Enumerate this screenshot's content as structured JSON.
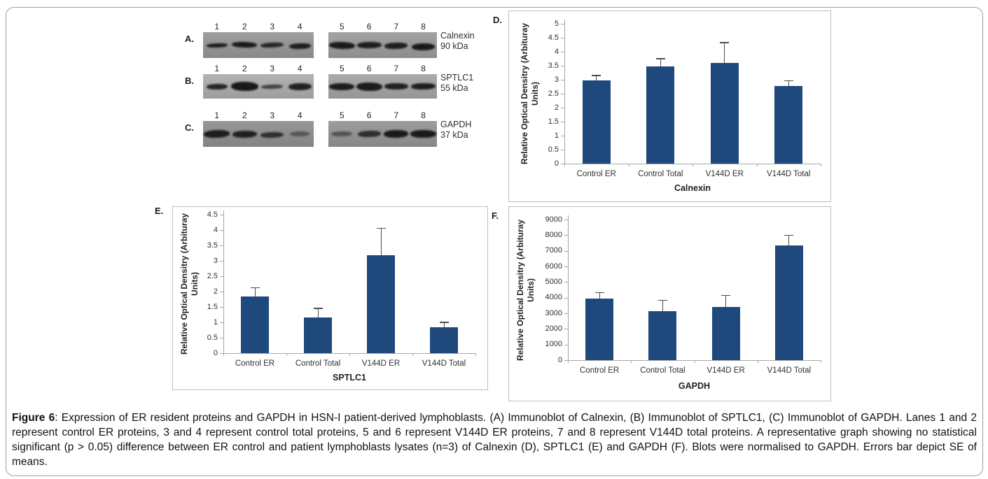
{
  "caption": {
    "prefix": "Figure 6",
    "text": ": Expression of ER resident proteins and GAPDH in HSN-I patient-derived lymphoblasts. (A) Immunoblot of Calnexin, (B) Immunoblot of SPTLC1, (C) Immunoblot of GAPDH. Lanes 1 and 2 represent control ER proteins, 3 and 4 represent control total proteins, 5 and 6 represent V144D ER proteins, 7 and 8 represent V144D total proteins. A representative graph showing no statistical significant (p > 0.05) difference between ER control and patient lymphoblasts lysates (n=3) of Calnexin (D), SPTLC1 (E) and GAPDH (F). Blots were normalised to GAPDH. Errors bar depict SE of means."
  },
  "colors": {
    "bar": "#1F497D",
    "axis": "#A6A6A6",
    "error_bar": "#4D4D4D",
    "tick_text": "#303030",
    "panel_border": "#BFBFBF",
    "frame_border": "#9E9E9E"
  },
  "blots": {
    "panels": [
      {
        "letter": "A.",
        "target": "Calnexin",
        "size": "90 kDa",
        "strips": [
          {
            "bg": "#949494",
            "lanes": [
              "1",
              "2",
              "3",
              "4"
            ],
            "bands": [
              [
                30,
                6,
                0.93,
                0,
                -2
              ],
              [
                36,
                8,
                0.95,
                -1,
                2
              ],
              [
                33,
                7,
                0.85,
                0,
                -3
              ],
              [
                31,
                8,
                0.92,
                1,
                -2
              ]
            ]
          },
          {
            "bg": "#999999",
            "lanes": [
              "5",
              "6",
              "7",
              "8"
            ],
            "bands": [
              [
                37,
                10,
                0.95,
                0,
                2
              ],
              [
                35,
                9,
                0.92,
                0,
                -1
              ],
              [
                33,
                9,
                0.92,
                1,
                -2
              ],
              [
                33,
                10,
                0.95,
                2,
                -1
              ]
            ]
          }
        ]
      },
      {
        "letter": "B.",
        "target": "SPTLC1",
        "size": "55 kDa",
        "strips": [
          {
            "bg": "#ababab",
            "lanes": [
              "1",
              "2",
              "3",
              "4"
            ],
            "bands": [
              [
                30,
                8,
                0.88,
                0,
                -1
              ],
              [
                39,
                13,
                0.96,
                0,
                1
              ],
              [
                31,
                6,
                0.68,
                0,
                -2
              ],
              [
                33,
                10,
                0.9,
                0,
                -1
              ]
            ]
          },
          {
            "bg": "#a2a2a2",
            "lanes": [
              "5",
              "6",
              "7",
              "8"
            ],
            "bands": [
              [
                36,
                10,
                0.94,
                0,
                0
              ],
              [
                37,
                12,
                0.95,
                0,
                1
              ],
              [
                34,
                9,
                0.9,
                0,
                0
              ],
              [
                35,
                9,
                0.92,
                0,
                -1
              ]
            ]
          }
        ]
      },
      {
        "letter": "C.",
        "target": "GAPDH",
        "size": "37 kDa",
        "strips": [
          {
            "bg": "#8d8d8d",
            "lanes": [
              "1",
              "2",
              "3",
              "4"
            ],
            "bands": [
              [
                37,
                11,
                0.92,
                0,
                -2
              ],
              [
                35,
                10,
                0.9,
                0,
                -1
              ],
              [
                33,
                8,
                0.78,
                1,
                -2
              ],
              [
                28,
                7,
                0.45,
                0,
                -1
              ]
            ]
          },
          {
            "bg": "#929292",
            "lanes": [
              "5",
              "6",
              "7",
              "8"
            ],
            "bands": [
              [
                30,
                7,
                0.5,
                0,
                -1
              ],
              [
                33,
                9,
                0.8,
                0,
                -2
              ],
              [
                35,
                11,
                0.95,
                0,
                -1
              ],
              [
                37,
                11,
                0.95,
                0,
                0
              ]
            ]
          }
        ]
      }
    ]
  },
  "chart_data": [
    {
      "id": "D",
      "panel_letter": "D.",
      "type": "bar",
      "title": "",
      "xlabel": "Calnexin",
      "ylabel": "Relative Optical Densitry (Arbituray Units)",
      "ylabel_lines": [
        "Relative Optical Densitry (Arbituray",
        "Units)"
      ],
      "categories": [
        "Control ER",
        "Control Total",
        "V144D ER",
        "V144D Total"
      ],
      "values": [
        2.97,
        3.48,
        3.6,
        2.78
      ],
      "errors_se": [
        0.18,
        0.27,
        0.72,
        0.18
      ],
      "ylim": [
        0,
        5
      ],
      "yticks": [
        "0",
        "0.5",
        "1",
        "1.5",
        "2",
        "2.5",
        "3",
        "3.5",
        "4",
        "4.5",
        "5"
      ],
      "grid": false,
      "legend": "none"
    },
    {
      "id": "E",
      "panel_letter": "E.",
      "type": "bar",
      "title": "",
      "xlabel": "SPTLC1",
      "ylabel": "Relative Optical Densitry (Arbituray Units)",
      "ylabel_lines": [
        "Relative Optical Densitry (Arbituray",
        "Units)"
      ],
      "categories": [
        "Control ER",
        "Control Total",
        "V144D ER",
        "V144D Total"
      ],
      "values": [
        1.85,
        1.17,
        3.18,
        0.85
      ],
      "errors_se": [
        0.27,
        0.28,
        0.87,
        0.15
      ],
      "ylim": [
        0,
        4.5
      ],
      "yticks": [
        "0",
        "0.5",
        "1",
        "1.5",
        "2",
        "2.5",
        "3",
        "3.5",
        "4",
        "4.5"
      ],
      "grid": false,
      "legend": "none"
    },
    {
      "id": "F",
      "panel_letter": "F.",
      "type": "bar",
      "title": "",
      "xlabel": "GAPDH",
      "ylabel": "Relative Optical Densitry (Arbituray Units)",
      "ylabel_lines": [
        "Relative Optical Densitry (Arbituray",
        "Units)"
      ],
      "categories": [
        "Control ER",
        "Control Total",
        "V144D ER",
        "V144D Total"
      ],
      "values": [
        3950,
        3150,
        3400,
        7330
      ],
      "errors_se": [
        350,
        670,
        730,
        650
      ],
      "ylim": [
        0,
        9000
      ],
      "yticks": [
        "0",
        "1000",
        "2000",
        "3000",
        "4000",
        "5000",
        "6000",
        "7000",
        "8000",
        "9000"
      ],
      "grid": false,
      "legend": "none"
    }
  ]
}
